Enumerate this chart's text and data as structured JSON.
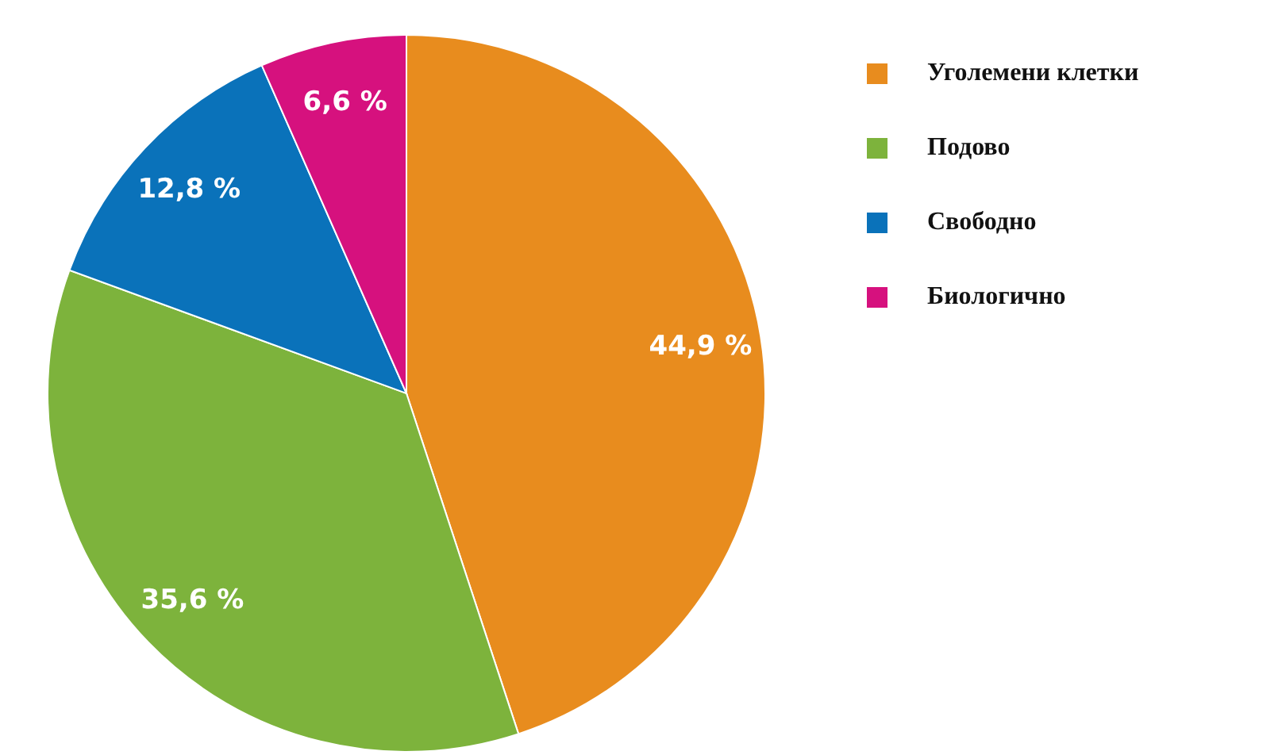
{
  "chart_data": {
    "type": "pie",
    "categories": [
      "Уголемени клетки",
      "Подово",
      "Свободно",
      "Биологично"
    ],
    "values": [
      44.9,
      35.6,
      12.8,
      6.6
    ],
    "value_labels": [
      "44,9 %",
      "35,6 %",
      "12,8 %",
      "6,6 %"
    ],
    "colors": [
      "#e88c1e",
      "#7db33c",
      "#0a72ba",
      "#d6117e"
    ],
    "legend": "right"
  }
}
